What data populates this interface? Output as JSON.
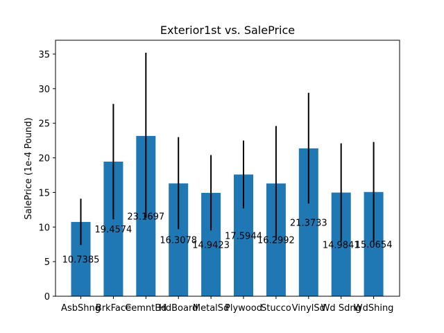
{
  "chart_data": {
    "type": "bar",
    "title": "Exterior1st vs. SalePrice",
    "xlabel": "",
    "ylabel": "SalePrice (1e-4 Pound)",
    "categories": [
      "AsbShng",
      "BrkFace",
      "CemntBd",
      "HdBoard",
      "MetalSd",
      "Plywood",
      "Stucco",
      "VinylSd",
      "Wd Sdng",
      "WdShing"
    ],
    "values": [
      10.7385,
      19.4574,
      23.1697,
      16.3078,
      14.9423,
      17.5944,
      16.2992,
      21.3733,
      14.9841,
      15.0654
    ],
    "value_labels": [
      "10.7385",
      "19.4574",
      "23.1697",
      "16.3078",
      "14.9423",
      "17.5944",
      "16.2992",
      "21.3733",
      "14.9841",
      "15.0654"
    ],
    "error_low": [
      7.4,
      11.1,
      11.3,
      9.7,
      9.5,
      12.7,
      8.1,
      13.4,
      7.9,
      7.9
    ],
    "error_high": [
      14.1,
      27.8,
      35.2,
      23.0,
      20.4,
      22.5,
      24.6,
      29.4,
      22.1,
      22.3
    ],
    "ylim": [
      0,
      37
    ],
    "yticks": [
      0,
      5,
      10,
      15,
      20,
      25,
      30,
      35
    ],
    "grid": false,
    "colors": {
      "bar": "#1f77b4",
      "error": "#000000"
    }
  }
}
